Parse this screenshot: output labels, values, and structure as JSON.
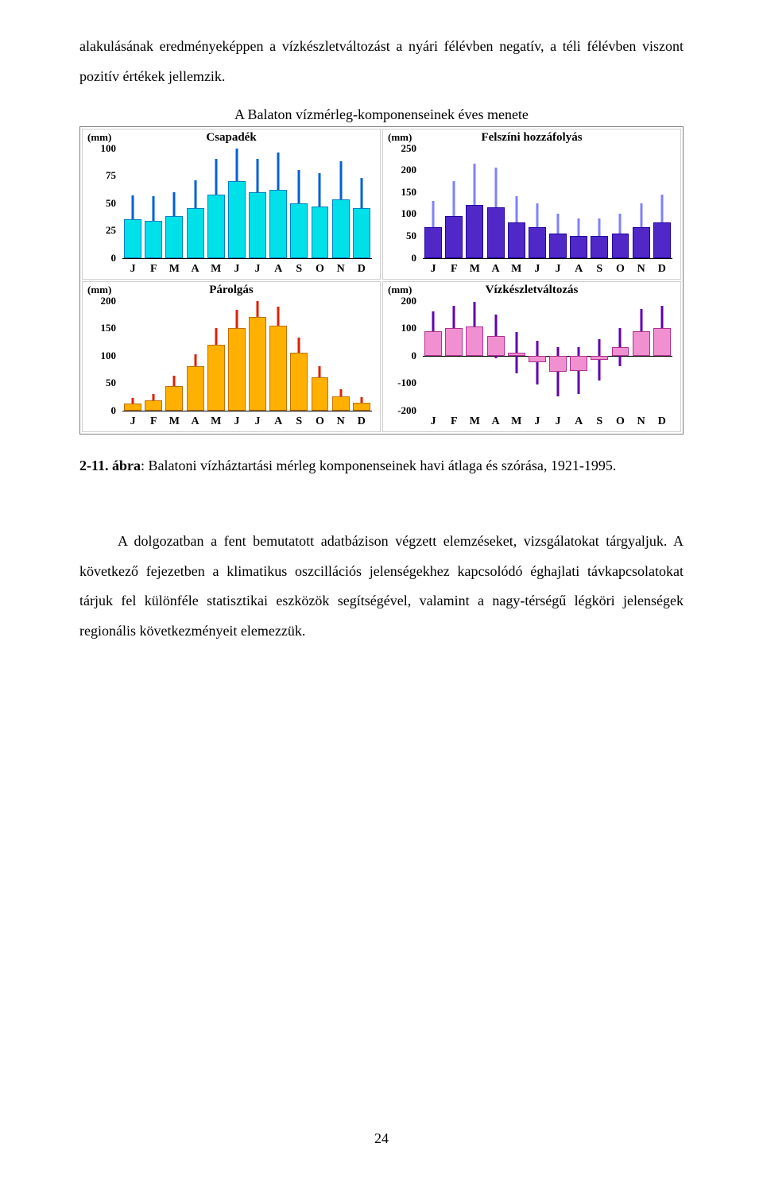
{
  "paragraphs": {
    "intro": "alakulásának eredményeképpen a vízkészletváltozást a nyári félévben negatív, a téli félévben viszont pozitív értékek jellemzik.",
    "figure_title": "A Balaton vízmérleg-komponenseinek éves menete",
    "caption_label": "2-11. ábra",
    "caption_text": ": Balatoni vízháztartási mérleg komponenseinek havi átlaga és szórása, 1921-1995.",
    "body": "A dolgozatban a fent bemutatott adatbázison végzett elemzéseket, vizsgálatokat tárgyaljuk. A következő fejezetben a klimatikus oszcillációs jelenségekhez kapcsolódó éghajlati távkapcsolatokat tárjuk fel különféle statisztikai eszközök segítségével, valamint a nagy-térségű légköri jelenségek regionális következményeit elemezzük.",
    "page_number": "24"
  },
  "months": [
    "J",
    "F",
    "M",
    "A",
    "M",
    "J",
    "J",
    "A",
    "S",
    "O",
    "N",
    "D"
  ],
  "y_unit_label": "(mm)",
  "charts": {
    "csapadek": {
      "title": "Csapadék",
      "ymin": 0,
      "ymax": 100,
      "ticks": [
        0,
        25,
        50,
        75,
        100
      ],
      "bar_fill": "#00e0e8",
      "bar_border": "#0080c0",
      "err_color": "#0060d8",
      "values": [
        35,
        34,
        38,
        45,
        58,
        70,
        60,
        62,
        50,
        47,
        53,
        45
      ],
      "err": [
        22,
        22,
        22,
        26,
        32,
        36,
        30,
        34,
        30,
        30,
        35,
        28
      ]
    },
    "hozza": {
      "title": "Felszíni hozzáfolyás",
      "ymin": 0,
      "ymax": 250,
      "ticks": [
        0,
        50,
        100,
        150,
        200,
        250
      ],
      "bar_fill": "#5028c8",
      "bar_border": "#2000a0",
      "err_color": "#8080ff",
      "values": [
        70,
        95,
        120,
        115,
        80,
        70,
        55,
        50,
        50,
        55,
        70,
        80
      ],
      "err": [
        60,
        80,
        95,
        90,
        60,
        55,
        45,
        40,
        40,
        45,
        55,
        65
      ]
    },
    "parolgas": {
      "title": "Párolgás",
      "ymin": 0,
      "ymax": 200,
      "ticks": [
        0,
        50,
        100,
        150,
        200
      ],
      "bar_fill": "#ffb000",
      "bar_border": "#c07000",
      "err_color": "#e02000",
      "values": [
        12,
        18,
        45,
        80,
        120,
        150,
        170,
        155,
        105,
        60,
        25,
        14
      ],
      "err": [
        10,
        12,
        18,
        22,
        30,
        34,
        36,
        34,
        28,
        20,
        14,
        10
      ]
    },
    "vizkeszlet": {
      "title": "Vízkészletváltozás",
      "ymin": -200,
      "ymax": 200,
      "ticks": [
        -200,
        -100,
        0,
        100,
        200
      ],
      "bar_fill": "#f090d0",
      "bar_border": "#b03090",
      "err_color": "#6000b0",
      "values": [
        90,
        100,
        105,
        70,
        10,
        -25,
        -60,
        -55,
        -15,
        30,
        90,
        100
      ],
      "err": [
        70,
        80,
        90,
        80,
        75,
        80,
        90,
        85,
        75,
        70,
        80,
        80
      ]
    }
  }
}
